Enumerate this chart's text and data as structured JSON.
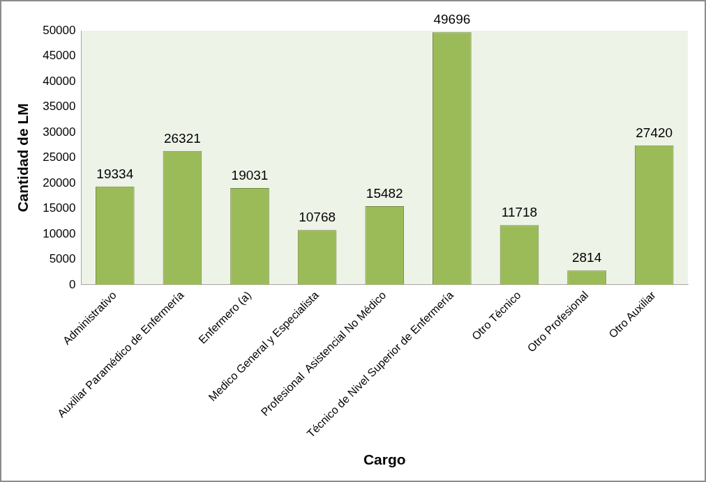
{
  "chart_data": {
    "type": "bar",
    "xlabel": "Cargo",
    "ylabel": "Cantidad de LM",
    "categories": [
      "Administrativo",
      "Auxiliar Paramédico de Enfermería",
      "Enfermero (a)",
      "Medico General y Especialista",
      "Profesional  Asistencial No Médico",
      "Técnico de Nivel Superior de Enfermería",
      "Otro Técnico",
      "Otro Profesional",
      "Otro Auxiliar"
    ],
    "values": [
      19334,
      26321,
      19031,
      10768,
      15482,
      49696,
      11718,
      2814,
      27420
    ],
    "color": "#9bbb59",
    "ylim": [
      0,
      50000
    ],
    "yticks": [
      0,
      5000,
      10000,
      15000,
      20000,
      25000,
      30000,
      35000,
      40000,
      45000,
      50000
    ],
    "data_labels": true
  }
}
